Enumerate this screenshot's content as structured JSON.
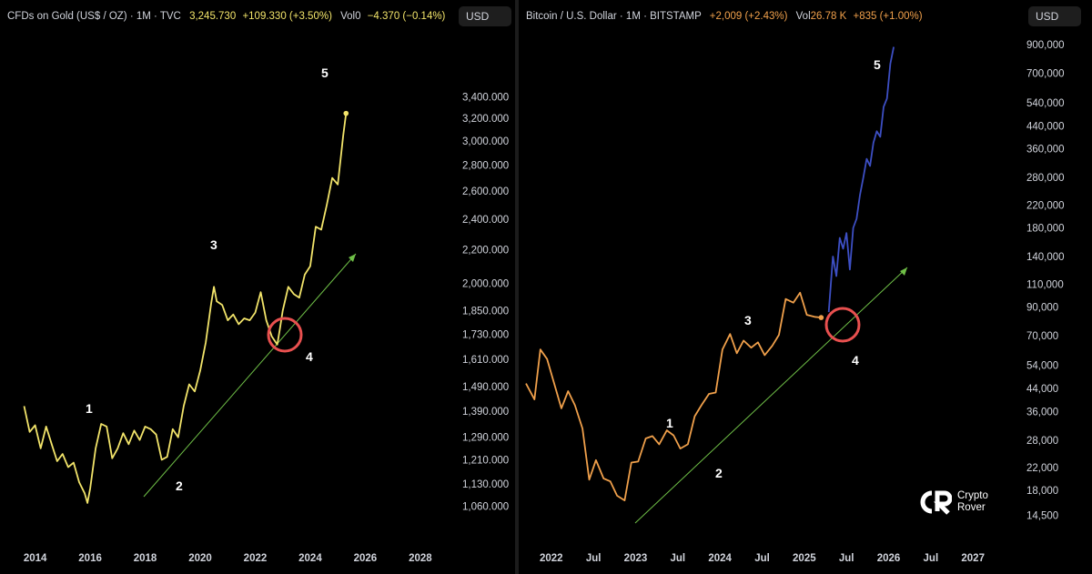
{
  "left": {
    "header": {
      "title": "CFDs on Gold (US$ / OZ) · 1M · TVC",
      "last": "3,245.730",
      "change": "+109.330 (+3.50%)",
      "vol_label": "Vol",
      "vol_value": "0",
      "vol_change": "−4.370 (−0.14%)"
    },
    "currency_button": "USD"
  },
  "right": {
    "header": {
      "title": "Bitcoin / U.S. Dollar · 1M · BITSTAMP",
      "change": "+2,009 (+2.43%)",
      "vol_label": "Vol",
      "vol_value": "26.78 K",
      "vol_change": "+835 (+1.00%)"
    },
    "currency_button": "USD"
  },
  "watermark": {
    "line1": "Crypto",
    "line2": "Rover"
  },
  "colors": {
    "gold": "#f2e46a",
    "btc": "#f0a04b",
    "btc_projection": "#3d4fc4",
    "trendline": "#6fbf47",
    "circle": "#e8504f",
    "background": "#000000"
  },
  "chart_data": [
    {
      "type": "line",
      "name": "gold",
      "x_ticks": [
        "2014",
        "2016",
        "2018",
        "2020",
        "2022",
        "2024",
        "2026",
        "2028"
      ],
      "x_tick_values": [
        2014,
        2016,
        2018,
        2020,
        2022,
        2024,
        2026,
        2028
      ],
      "xlim": [
        2013.5,
        2028.5
      ],
      "y_scale": "log",
      "y_ticks": [
        "1,060.000",
        "1,130.000",
        "1,210.000",
        "1,290.000",
        "1,390.000",
        "1,490.000",
        "1,610.000",
        "1,730.000",
        "1,850.000",
        "2,000.000",
        "2,200.000",
        "2,400.000",
        "2,600.000",
        "2,800.000",
        "3,000.000",
        "3,200.000",
        "3,400.000"
      ],
      "y_tick_values": [
        1060,
        1130,
        1210,
        1290,
        1390,
        1490,
        1610,
        1730,
        1850,
        2000,
        2200,
        2400,
        2600,
        2800,
        3000,
        3200,
        3400
      ],
      "ylim": [
        1000,
        3700
      ],
      "series": [
        {
          "x": [
            2013.6,
            2013.8,
            2014.0,
            2014.2,
            2014.4,
            2014.6,
            2014.8,
            2015.0,
            2015.2,
            2015.4,
            2015.6,
            2015.8,
            2015.9,
            2016.0,
            2016.2,
            2016.4,
            2016.6,
            2016.8,
            2017.0,
            2017.2,
            2017.4,
            2017.6,
            2017.8,
            2018.0,
            2018.2,
            2018.4,
            2018.6,
            2018.8,
            2019.0,
            2019.2,
            2019.4,
            2019.6,
            2019.8,
            2020.0,
            2020.2,
            2020.4,
            2020.5,
            2020.6,
            2020.8,
            2021.0,
            2021.2,
            2021.4,
            2021.6,
            2021.8,
            2022.0,
            2022.2,
            2022.4,
            2022.6,
            2022.8,
            2022.9,
            2023.0,
            2023.2,
            2023.4,
            2023.6,
            2023.8,
            2024.0,
            2024.2,
            2024.4,
            2024.6,
            2024.8,
            2025.0,
            2025.2,
            2025.3
          ],
          "y": [
            1410,
            1310,
            1335,
            1250,
            1330,
            1265,
            1205,
            1230,
            1185,
            1200,
            1135,
            1100,
            1070,
            1115,
            1250,
            1340,
            1330,
            1215,
            1250,
            1305,
            1265,
            1315,
            1280,
            1330,
            1320,
            1300,
            1210,
            1220,
            1320,
            1290,
            1410,
            1500,
            1470,
            1560,
            1690,
            1890,
            1980,
            1900,
            1880,
            1800,
            1830,
            1780,
            1810,
            1800,
            1840,
            1950,
            1800,
            1720,
            1680,
            1760,
            1850,
            1980,
            1940,
            1920,
            2050,
            2100,
            2350,
            2330,
            2500,
            2700,
            2650,
            3050,
            3245
          ]
        }
      ],
      "annotations": [
        "1",
        "2",
        "3",
        "4",
        "5"
      ]
    },
    {
      "type": "line",
      "name": "btc",
      "x_ticks": [
        "2022",
        "Jul",
        "2023",
        "Jul",
        "2024",
        "Jul",
        "2025",
        "Jul",
        "2026",
        "Jul",
        "2027"
      ],
      "x_tick_values": [
        2022.0,
        2022.5,
        2023.0,
        2023.5,
        2024.0,
        2024.5,
        2025.0,
        2025.5,
        2026.0,
        2026.5,
        2027.0
      ],
      "xlim": [
        2021.7,
        2027.3
      ],
      "y_scale": "log",
      "y_ticks": [
        "14,500",
        "18,000",
        "22,000",
        "28,000",
        "36,000",
        "44,000",
        "54,000",
        "70,000",
        "90,000",
        "110,000",
        "140,000",
        "180,000",
        "220,000",
        "280,000",
        "360,000",
        "440,000",
        "540,000",
        "700,000",
        "900,000"
      ],
      "y_tick_values": [
        14500,
        18000,
        22000,
        28000,
        36000,
        44000,
        54000,
        70000,
        90000,
        110000,
        140000,
        180000,
        220000,
        280000,
        360000,
        440000,
        540000,
        700000,
        900000
      ],
      "ylim": [
        13000,
        950000
      ],
      "series": [
        {
          "x": [
            2021.7,
            2021.8,
            2021.87,
            2021.95,
            2022.03,
            2022.12,
            2022.2,
            2022.28,
            2022.37,
            2022.45,
            2022.53,
            2022.62,
            2022.7,
            2022.78,
            2022.87,
            2022.95,
            2023.03,
            2023.12,
            2023.2,
            2023.28,
            2023.37,
            2023.45,
            2023.53,
            2023.62,
            2023.7,
            2023.78,
            2023.87,
            2023.95,
            2024.03,
            2024.12,
            2024.2,
            2024.28,
            2024.37,
            2024.45,
            2024.53,
            2024.62,
            2024.7,
            2024.78,
            2024.87,
            2024.95,
            2025.03,
            2025.12,
            2025.2
          ],
          "y": [
            46000,
            40000,
            62000,
            57000,
            46500,
            37000,
            43000,
            38000,
            31000,
            19800,
            23500,
            20000,
            19500,
            17200,
            16500,
            23000,
            23200,
            28400,
            29000,
            27000,
            30500,
            29200,
            26000,
            27000,
            34500,
            38000,
            42000,
            42500,
            62000,
            71000,
            60000,
            67000,
            63000,
            66000,
            59000,
            64000,
            70500,
            96500,
            93500,
            102000,
            84000,
            82500,
            82000
          ]
        },
        {
          "x": [
            2025.29,
            2025.34,
            2025.38,
            2025.42,
            2025.46,
            2025.5,
            2025.54,
            2025.58,
            2025.62,
            2025.66,
            2025.7,
            2025.74,
            2025.78,
            2025.82,
            2025.86,
            2025.9,
            2025.94,
            2025.98,
            2026.02,
            2026.06
          ],
          "y": [
            86000,
            140000,
            118000,
            165000,
            150000,
            172000,
            125000,
            180000,
            195000,
            240000,
            280000,
            330000,
            310000,
            380000,
            420000,
            400000,
            520000,
            560000,
            760000,
            880000
          ]
        }
      ],
      "annotations": [
        "1",
        "2",
        "3",
        "4",
        "5"
      ]
    }
  ]
}
